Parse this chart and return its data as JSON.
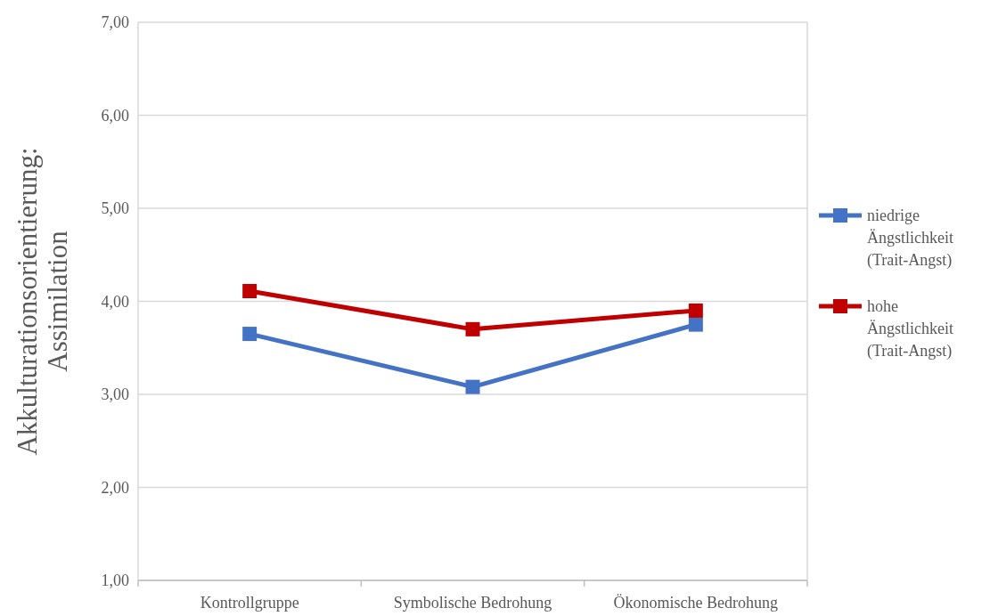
{
  "chart_data": {
    "type": "line",
    "ylabel": "Akkulturationsorientierung: Assimilation",
    "categories": [
      "Kontrollgruppe",
      "Symbolische Bedrohung",
      "Ökonomische Bedrohung"
    ],
    "series": [
      {
        "name": "niedrige Ängstlichkeit (Trait-Angst)",
        "color": "#4472c4",
        "values": [
          3.65,
          3.08,
          3.75
        ]
      },
      {
        "name": "hohe Ängstlichkeit (Trait-Angst)",
        "color": "#c00000",
        "values": [
          4.11,
          3.7,
          3.9
        ]
      }
    ],
    "ylim": [
      1,
      7
    ],
    "yticks": [
      {
        "value": 1,
        "label": "1,00"
      },
      {
        "value": 2,
        "label": "2,00"
      },
      {
        "value": 3,
        "label": "3,00"
      },
      {
        "value": 4,
        "label": "4,00"
      },
      {
        "value": 5,
        "label": "5,00"
      },
      {
        "value": 6,
        "label": "6,00"
      },
      {
        "value": 7,
        "label": "7,00"
      }
    ],
    "grid": "y",
    "legend": "right",
    "marker": "square",
    "line_style": "solid"
  }
}
